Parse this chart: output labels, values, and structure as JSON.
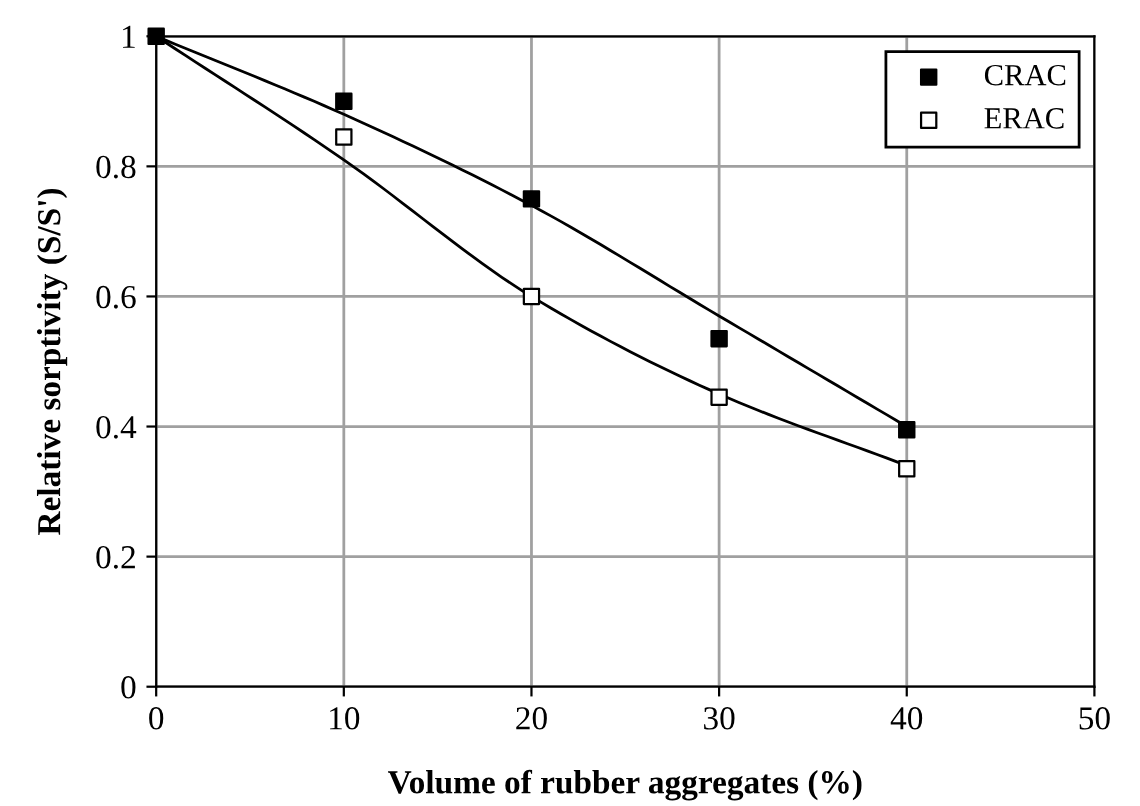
{
  "chart_data": {
    "type": "scatter",
    "xlabel": "Volume of rubber aggregates (%)",
    "ylabel": "Relative sorptivity (S/S')",
    "xlim": [
      0,
      50
    ],
    "xticks": [
      0,
      10,
      20,
      30,
      40,
      50
    ],
    "ylim": [
      0,
      1
    ],
    "yticks": [
      0,
      0.2,
      0.4,
      0.6,
      0.8,
      1
    ],
    "grid": true,
    "legend": "top right",
    "series": [
      {
        "name": "CRAC",
        "color": "#000000",
        "marker": "square",
        "x": [
          0,
          10,
          20,
          30,
          40
        ],
        "values": [
          1,
          0.9,
          0.75,
          0.535,
          0.395
        ]
      },
      {
        "name": "ERAC",
        "color": "#000000",
        "marker": "square",
        "x": [
          10,
          20,
          30,
          40
        ],
        "values": [
          0.845,
          0.6,
          0.445,
          0.335
        ]
      },
      {
        "type": "line",
        "color": "#000000",
        "x": [
          0,
          10,
          20,
          30,
          40
        ],
        "values": [
          1,
          0.88,
          0.74,
          0.57,
          0.4
        ]
      },
      {
        "type": "line",
        "color": "#000000",
        "x": [
          0,
          10,
          20,
          30,
          40
        ],
        "values": [
          1,
          0.81,
          0.6,
          0.45,
          0.34
        ]
      }
    ]
  }
}
